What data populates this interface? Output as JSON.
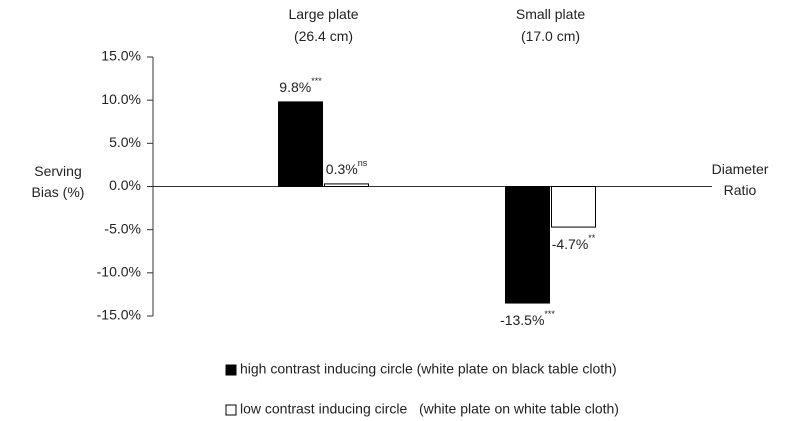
{
  "chart_data": {
    "type": "bar",
    "categories": [
      [
        "Large plate",
        "(26.4 cm)"
      ],
      [
        "Small plate",
        "(17.0 cm)"
      ]
    ],
    "y_label": [
      "Serving",
      "Bias (%)"
    ],
    "x_label": [
      "Diameter",
      "Ratio"
    ],
    "ylim": [
      -15,
      15
    ],
    "yticks": [
      {
        "value": 15,
        "label": "15.0%"
      },
      {
        "value": 10,
        "label": "10.0%"
      },
      {
        "value": 5,
        "label": "5.0%"
      },
      {
        "value": 0,
        "label": "0.0%"
      },
      {
        "value": -5,
        "label": "-5.0%"
      },
      {
        "value": -10,
        "label": "-10.0%"
      },
      {
        "value": -15,
        "label": "-15.0%"
      }
    ],
    "series": [
      {
        "name": "high contrast inducing circle (white plate on black table cloth)",
        "color": "#000000",
        "values": [
          9.8,
          -13.5
        ],
        "value_labels": [
          "9.8%",
          "-13.5%"
        ],
        "significance": [
          "***",
          "***"
        ]
      },
      {
        "name": "low contrast inducing circle   (white plate on white table cloth)",
        "color": "#ffffff",
        "values": [
          0.3,
          -4.7
        ],
        "value_labels": [
          "0.3%",
          "-4.7%"
        ],
        "significance": [
          "ns",
          "**"
        ]
      }
    ]
  }
}
